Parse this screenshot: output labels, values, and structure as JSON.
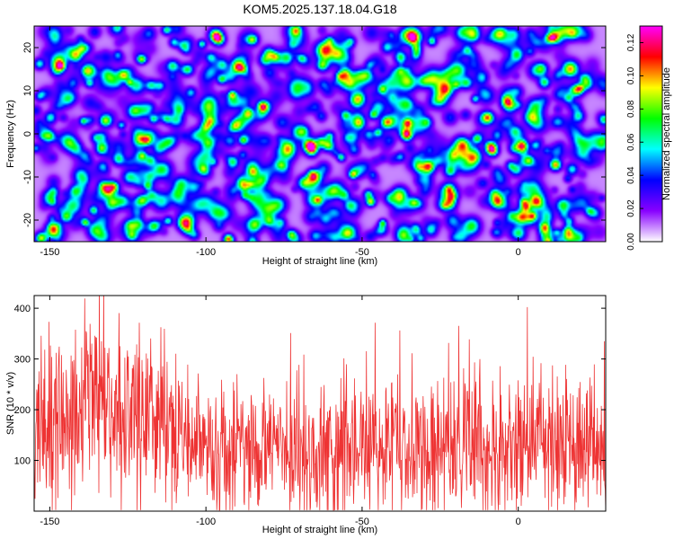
{
  "title": "KOM5.2025.137.18.04.G18",
  "chart_data": [
    {
      "type": "heatmap",
      "xlabel": "Height of straight line (km)",
      "ylabel": "Frequency (Hz)",
      "xlim": [
        -155,
        28
      ],
      "ylim": [
        -25,
        25
      ],
      "xticks": [
        -150,
        -100,
        -50,
        0
      ],
      "xtick_labels": [
        "-150",
        "-100",
        "-50",
        "0"
      ],
      "yticks": [
        -20,
        -10,
        0,
        10,
        20
      ],
      "ytick_labels": [
        "-20",
        "-10",
        "0",
        "10",
        "20"
      ],
      "colorbar": {
        "label": "Normalized spectral amplitude",
        "range": [
          0,
          0.13
        ],
        "ticks": [
          0.0,
          0.02,
          0.04,
          0.06,
          0.08,
          0.1,
          0.12
        ],
        "tick_labels": [
          "0.00",
          "0.02",
          "0.04",
          "0.06",
          "0.08",
          "0.10",
          "0.12"
        ],
        "colors": [
          "#ffffff",
          "#8800ff",
          "#0000ff",
          "#00ffff",
          "#00ff00",
          "#ffff00",
          "#ff0000",
          "#ff00ff"
        ]
      },
      "background_level": 0.025,
      "peaks": [
        {
          "x": -82,
          "y": 6.5,
          "value": 0.12
        },
        {
          "x": -36,
          "y": 0,
          "value": 0.125
        },
        {
          "x": -67,
          "y": -2.5,
          "value": 0.1
        },
        {
          "x": -61,
          "y": -2.5,
          "value": 0.09
        },
        {
          "x": -10,
          "y": 4,
          "value": 0.1
        },
        {
          "x": 1,
          "y": -2.5,
          "value": 0.11
        },
        {
          "x": 11,
          "y": 22.5,
          "value": 0.1
        },
        {
          "x": -153,
          "y": -24,
          "value": 0.1
        },
        {
          "x": -29,
          "y": -7.5,
          "value": 0.08
        },
        {
          "x": -101,
          "y": -8,
          "value": 0.08
        },
        {
          "x": -145,
          "y": -19,
          "value": 0.08
        },
        {
          "x": 8,
          "y": -21.5,
          "value": 0.09
        },
        {
          "x": -4,
          "y": 8,
          "value": 0.08
        },
        {
          "x": -140,
          "y": 20,
          "value": 0.07
        },
        {
          "x": -127,
          "y": 14,
          "value": 0.08
        },
        {
          "x": -111,
          "y": 16,
          "value": 0.07
        },
        {
          "x": -63,
          "y": 16,
          "value": 0.07
        },
        {
          "x": -38,
          "y": 18,
          "value": 0.08
        },
        {
          "x": -17,
          "y": 12,
          "value": 0.07
        },
        {
          "x": -118,
          "y": -6,
          "value": 0.07
        },
        {
          "x": -91,
          "y": 2,
          "value": 0.07
        },
        {
          "x": -56,
          "y": -14,
          "value": 0.07
        },
        {
          "x": -22,
          "y": -16,
          "value": 0.07
        },
        {
          "x": 17,
          "y": -8,
          "value": 0.07
        },
        {
          "x": 21,
          "y": 13,
          "value": 0.07
        },
        {
          "x": -150,
          "y": 4,
          "value": 0.07
        },
        {
          "x": -133,
          "y": -12,
          "value": 0.07
        },
        {
          "x": -80,
          "y": -20,
          "value": 0.07
        },
        {
          "x": -106,
          "y": -22,
          "value": 0.07
        },
        {
          "x": -44,
          "y": -22,
          "value": 0.07
        }
      ]
    },
    {
      "type": "line",
      "xlabel": "Height of straight line (km)",
      "ylabel": "SNR (10 * v/v)",
      "xlim": [
        -155,
        28
      ],
      "ylim": [
        0,
        425
      ],
      "xticks": [
        -150,
        -100,
        -50,
        0
      ],
      "xtick_labels": [
        "-150",
        "-100",
        "-50",
        "0"
      ],
      "yticks": [
        100,
        200,
        300,
        400
      ],
      "ytick_labels": [
        "100",
        "200",
        "300",
        "400"
      ],
      "color": "#ee3333",
      "samples": 1300,
      "envelope": [
        {
          "x": -155,
          "mean": 150,
          "spread": 90
        },
        {
          "x": -145,
          "mean": 170,
          "spread": 100
        },
        {
          "x": -138,
          "mean": 205,
          "spread": 115
        },
        {
          "x": -130,
          "mean": 215,
          "spread": 110
        },
        {
          "x": -122,
          "mean": 185,
          "spread": 100
        },
        {
          "x": -110,
          "mean": 150,
          "spread": 90
        },
        {
          "x": -100,
          "mean": 115,
          "spread": 75
        },
        {
          "x": -80,
          "mean": 120,
          "spread": 80
        },
        {
          "x": -60,
          "mean": 125,
          "spread": 85
        },
        {
          "x": -40,
          "mean": 120,
          "spread": 80
        },
        {
          "x": -20,
          "mean": 130,
          "spread": 90
        },
        {
          "x": 0,
          "mean": 125,
          "spread": 90
        },
        {
          "x": 15,
          "mean": 130,
          "spread": 90
        },
        {
          "x": 28,
          "mean": 125,
          "spread": 85
        }
      ]
    }
  ]
}
